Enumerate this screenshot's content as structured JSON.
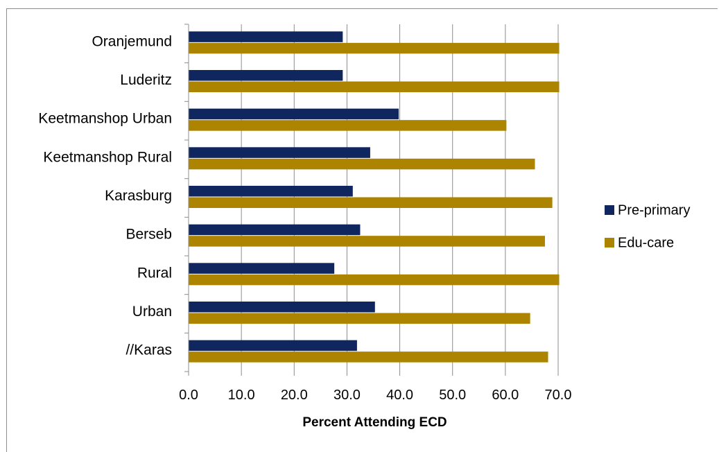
{
  "chart_data": {
    "type": "bar",
    "orientation": "horizontal",
    "categories": [
      "Oranjemund",
      "Luderitz",
      "Keetmanshop Urban",
      "Keetmanshop Rural",
      "Karasburg",
      "Berseb",
      "Rural",
      "Urban ",
      "//Karas"
    ],
    "series": [
      {
        "name": "Pre-primary",
        "color": "#10265f",
        "values": [
          29.2,
          29.2,
          39.8,
          34.4,
          31.1,
          32.5,
          27.6,
          35.3,
          31.9
        ]
      },
      {
        "name": "Edu-care",
        "color": "#ad8400",
        "values": [
          70.2,
          70.2,
          60.2,
          65.6,
          68.9,
          67.5,
          70.2,
          64.7,
          68.1
        ]
      }
    ],
    "xlabel": "Percent Attending ECD",
    "xlim": [
      0,
      70
    ],
    "x_ticks": [
      "0.0",
      "10.0",
      "20.0",
      "30.0",
      "40.0",
      "50.0",
      "60.0",
      "70.0"
    ],
    "grid": "vertical",
    "legend_position": "right"
  }
}
